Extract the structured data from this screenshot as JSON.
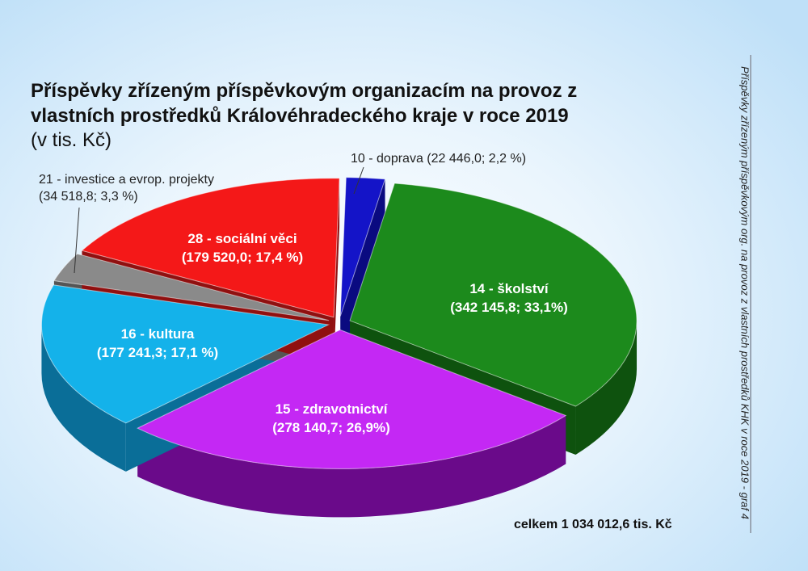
{
  "chart_data": {
    "type": "pie",
    "title": "Příspěvky  zřízeným příspěvkovým organizacím na provoz z vlastních prostředků Královéhradeckého kraje v roce 2019",
    "unit": "(v tis. Kč)",
    "slices": [
      {
        "label": "10 - doprava",
        "value": 22446.0,
        "percent": 2.2,
        "value_text": "(22 446,0; 2,2 %)",
        "color": "#1414c8",
        "side": "#0a0a80"
      },
      {
        "label": "14 - školství",
        "value": 342145.8,
        "percent": 33.1,
        "value_text": "(342 145,8; 33,1%)",
        "color": "#1c8a1c",
        "side": "#0e520e"
      },
      {
        "label": "15 - zdravotnictví",
        "value": 278140.7,
        "percent": 26.9,
        "value_text": "(278 140,7; 26,9%)",
        "color": "#c428f4",
        "side": "#6a0a8a"
      },
      {
        "label": "16 - kultura",
        "value": 177241.3,
        "percent": 17.1,
        "value_text": "(177 241,3; 17,1 %)",
        "color": "#14b2ea",
        "side": "#0a6e98"
      },
      {
        "label": "21 - investice a evrop. projekty",
        "value": 34518.8,
        "percent": 3.3,
        "value_text": "(34 518,8; 3,3 %)",
        "color": "#8a8a8a",
        "side": "#555555"
      },
      {
        "label": "28 - sociální věci",
        "value": 179520.0,
        "percent": 17.4,
        "value_text": "(179 520,0; 17,4 %)",
        "color": "#f41818",
        "side": "#901010"
      }
    ],
    "total_text": "celkem 1 034 012,6 tis. Kč",
    "side_note": "Příspěvky zřízeným příspěvkovým org. na provoz z vlastních prostředků KHK v roce 2019 - graf 4"
  }
}
